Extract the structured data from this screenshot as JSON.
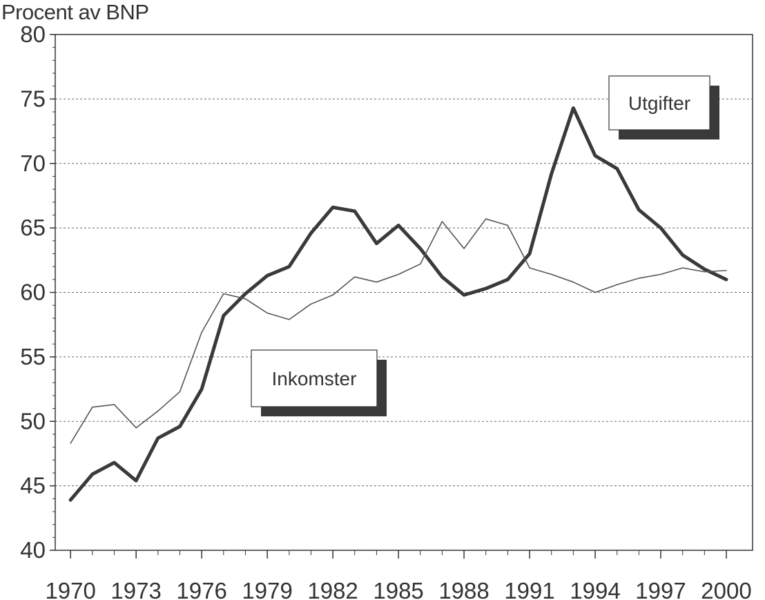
{
  "chart_data": {
    "type": "line",
    "ylabel": "Procent av BNP",
    "xlabel": "",
    "ylim": [
      40,
      80
    ],
    "yticks": [
      "40",
      "45",
      "50",
      "55",
      "60",
      "65",
      "70",
      "75",
      "80"
    ],
    "xticks": [
      "1970",
      "1973",
      "1976",
      "1979",
      "1982",
      "1985",
      "1988",
      "1991",
      "1994",
      "1997",
      "2000"
    ],
    "grid": true,
    "grid_style": "dashed horizontal",
    "x": [
      1970,
      1971,
      1972,
      1973,
      1974,
      1975,
      1976,
      1977,
      1978,
      1979,
      1980,
      1981,
      1982,
      1983,
      1984,
      1985,
      1986,
      1987,
      1988,
      1989,
      1990,
      1991,
      1992,
      1993,
      1994,
      1995,
      1996,
      1997,
      1998,
      1999,
      2000
    ],
    "series": [
      {
        "name": "Utgifter",
        "color": "#3a3a3a",
        "line": "thick",
        "values": [
          43.9,
          45.9,
          46.8,
          45.4,
          48.7,
          49.6,
          52.5,
          58.2,
          59.9,
          61.3,
          62.0,
          64.6,
          66.6,
          66.3,
          63.8,
          65.2,
          63.4,
          61.2,
          59.8,
          60.3,
          61.0,
          63.0,
          69.2,
          74.3,
          70.6,
          69.6,
          66.4,
          65.0,
          62.9,
          61.8,
          61.0
        ]
      },
      {
        "name": "Inkomster",
        "color": "#555555",
        "line": "thin",
        "values": [
          48.3,
          51.1,
          51.3,
          49.5,
          50.8,
          52.3,
          56.9,
          59.9,
          59.5,
          58.4,
          57.9,
          59.1,
          59.8,
          61.2,
          60.8,
          61.4,
          62.2,
          65.5,
          63.4,
          65.7,
          65.2,
          61.9,
          61.4,
          60.8,
          60.0,
          60.6,
          61.1,
          61.4,
          61.9,
          61.6,
          61.7
        ]
      }
    ],
    "callouts": [
      {
        "label": "Utgifter",
        "position": "upper right"
      },
      {
        "label": "Inkomster",
        "position": "middle left"
      }
    ]
  }
}
